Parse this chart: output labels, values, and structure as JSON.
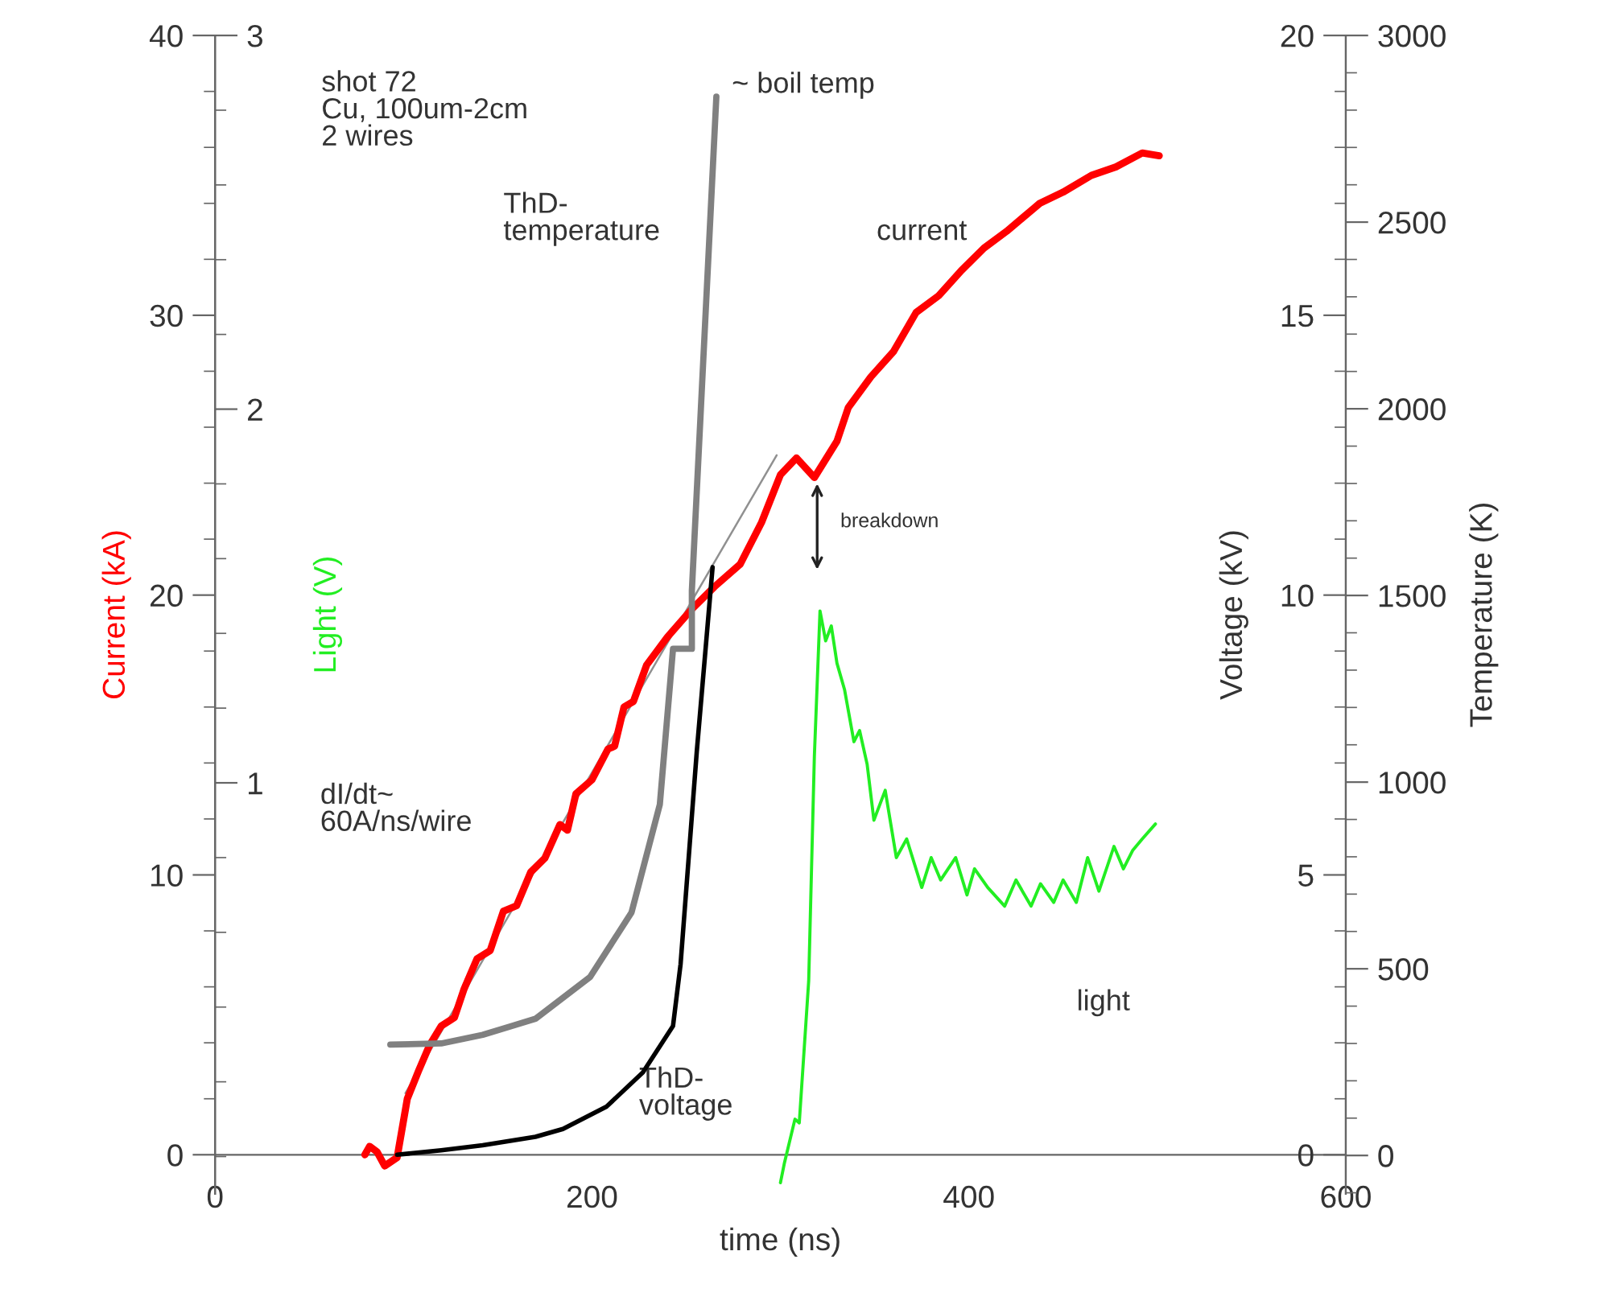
{
  "chart_data": [
    {
      "type": "line",
      "xlabel": "time (ns)",
      "ylabel": "Current (kA)",
      "y2label": "Voltage (kV)",
      "y3label": "Temperature (K)",
      "xlim": [
        0,
        600
      ],
      "xticks": [
        0,
        200,
        400,
        600
      ],
      "ylim": [
        -1.4,
        40
      ],
      "yticks": [
        0,
        10,
        20,
        30,
        40
      ],
      "y2lim": [
        -0.7,
        20
      ],
      "y2ticks": [
        0,
        5,
        10,
        15,
        20
      ],
      "y3lim": [
        -103,
        3000
      ],
      "y3ticks": [
        0,
        500,
        1000,
        1500,
        2000,
        2500,
        3000
      ],
      "grid": false,
      "line_style": "solid",
      "marker": "none",
      "annotations": [
        "shot 72\nCu, 100um-2cm\n2 wires",
        "~ boil temp",
        "breakdown"
      ],
      "series": [
        {
          "name": "dI/dt~\n60A/ns/wire",
          "color": "#909090",
          "axis": "y",
          "x": [
            101,
            298
          ],
          "values": [
            2.2,
            25.0
          ]
        },
        {
          "name": "current",
          "color": "#ff0000",
          "axis": "y",
          "x": [
            79.5,
            82,
            86,
            90,
            96.6,
            102,
            108,
            113.7,
            120,
            127,
            132,
            139,
            146,
            153,
            160,
            167.5,
            175,
            183,
            187,
            191.5,
            200,
            208.5,
            212,
            217,
            222,
            229,
            240,
            253,
            265,
            278.6,
            290,
            300,
            308.5,
            318,
            330,
            336,
            348,
            360,
            372,
            384,
            396,
            408,
            420,
            437.6,
            450,
            465,
            478,
            492,
            501
          ],
          "values": [
            0,
            0.3,
            0.1,
            -0.4,
            -0.1,
            2.0,
            3.0,
            3.9,
            4.6,
            4.9,
            5.9,
            7.0,
            7.3,
            8.7,
            8.9,
            10.1,
            10.6,
            11.8,
            11.6,
            12.9,
            13.4,
            14.5,
            14.6,
            16.0,
            16.2,
            17.5,
            18.5,
            19.5,
            20.3,
            21.1,
            22.6,
            24.3,
            24.9,
            24.2,
            25.5,
            26.7,
            27.8,
            28.7,
            30.1,
            30.7,
            31.6,
            32.4,
            33.0,
            34.0,
            34.4,
            35.0,
            35.3,
            35.8,
            35.7
          ]
        },
        {
          "name": "ThD-\ntemperature",
          "color": "#808080",
          "axis": "y3",
          "x": [
            93,
            120,
            142,
            170,
            199,
            221,
            236,
            242,
            243,
            253,
            253,
            266
          ],
          "values": [
            297,
            300,
            323,
            366,
            478,
            651,
            940,
            1297,
            1357,
            1357,
            1513,
            2836
          ]
        },
        {
          "name": "ThD-\nvoltage",
          "color": "#000000",
          "axis": "y2",
          "x": [
            96.6,
            120,
            142,
            170,
            184.6,
            207.7,
            227,
            243,
            247,
            255.6,
            264
          ],
          "values": [
            0,
            0.08,
            0.17,
            0.32,
            0.46,
            0.86,
            1.47,
            2.3,
            3.4,
            7.2,
            10.5
          ]
        }
      ]
    },
    {
      "type": "line",
      "ylabel": "Light (V)",
      "tick_labels": "y",
      "xlim": [
        0,
        600
      ],
      "ylim": [
        -0.1,
        3
      ],
      "yticks": [
        1,
        2,
        3
      ],
      "line_style": "solid",
      "marker": "none",
      "series": [
        {
          "name": "light",
          "color": "#22ee22",
          "x": [
            300,
            302,
            307.7,
            310,
            315,
            318,
            321,
            324,
            327,
            330,
            334,
            339,
            342,
            346,
            349.6,
            355.6,
            361.5,
            367,
            375,
            380,
            385,
            393,
            399,
            403,
            410,
            419,
            425,
            433,
            438,
            445,
            450,
            457,
            463,
            469,
            477,
            482,
            487,
            492,
            499
          ],
          "values": [
            -0.07,
            -0.02,
            0.1,
            0.09,
            0.47,
            1.07,
            1.46,
            1.38,
            1.42,
            1.32,
            1.25,
            1.11,
            1.14,
            1.05,
            0.9,
            0.98,
            0.8,
            0.85,
            0.72,
            0.8,
            0.74,
            0.8,
            0.7,
            0.77,
            0.72,
            0.67,
            0.74,
            0.67,
            0.73,
            0.68,
            0.74,
            0.68,
            0.8,
            0.71,
            0.83,
            0.77,
            0.82,
            0.85,
            0.89
          ]
        }
      ]
    }
  ]
}
